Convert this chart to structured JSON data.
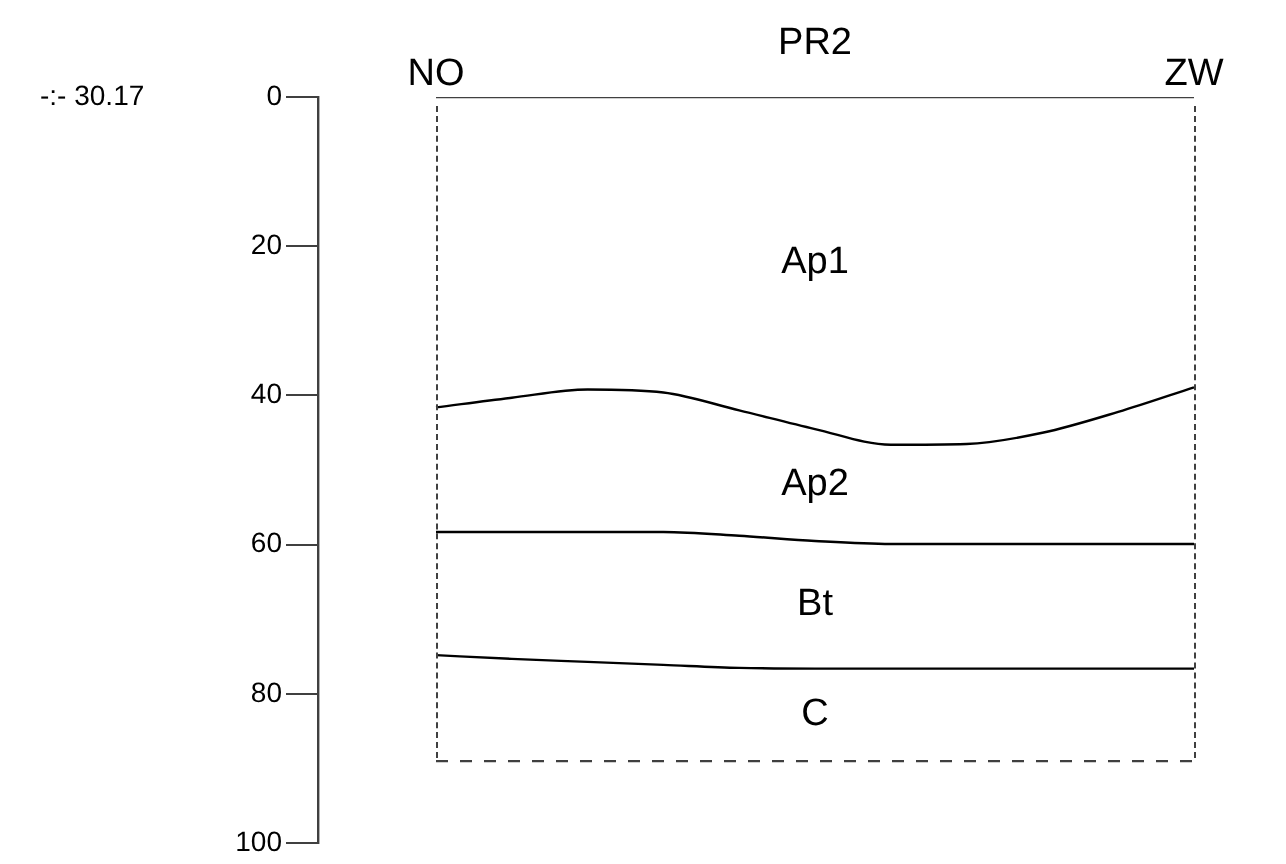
{
  "chart_data": {
    "type": "line",
    "title": "PR2",
    "categories": [
      "NO",
      null,
      null,
      null,
      null,
      null,
      null,
      null,
      null,
      null,
      "ZW"
    ],
    "series": [
      {
        "color": "#404040",
        "line_style": "solid",
        "values": [
          0,
          0,
          0,
          0,
          0,
          0,
          0,
          0,
          0,
          0,
          0
        ]
      },
      {
        "color": "#000000",
        "line_style": "solid",
        "values": [
          41.6,
          40.3,
          39.2,
          39.6,
          42.0,
          44.5,
          46.6,
          46.5,
          45.0,
          42.2,
          38.9
        ]
      },
      {
        "color": "#000000",
        "line_style": "solid",
        "values": [
          58.3,
          58.3,
          58.3,
          58.3,
          58.8,
          59.5,
          59.9,
          59.9,
          59.9,
          59.9,
          59.9
        ]
      },
      {
        "color": "#000000",
        "line_style": "solid",
        "values": [
          74.8,
          75.3,
          75.7,
          76.1,
          76.5,
          76.6,
          76.6,
          76.6,
          76.6,
          76.6,
          76.6
        ]
      },
      {
        "color": "#404040",
        "line_style": "dashed",
        "values": [
          89,
          89,
          89,
          89,
          89,
          89,
          89,
          89,
          89,
          89,
          89
        ]
      }
    ],
    "ylim": [
      100,
      0
    ],
    "yticks": [
      0,
      20,
      40,
      60,
      80,
      100
    ],
    "grid": false,
    "legend": false,
    "marker": "none",
    "annotations": [
      "-:- 30.17",
      "Ap1",
      "Ap2",
      "Bt",
      "C"
    ]
  }
}
